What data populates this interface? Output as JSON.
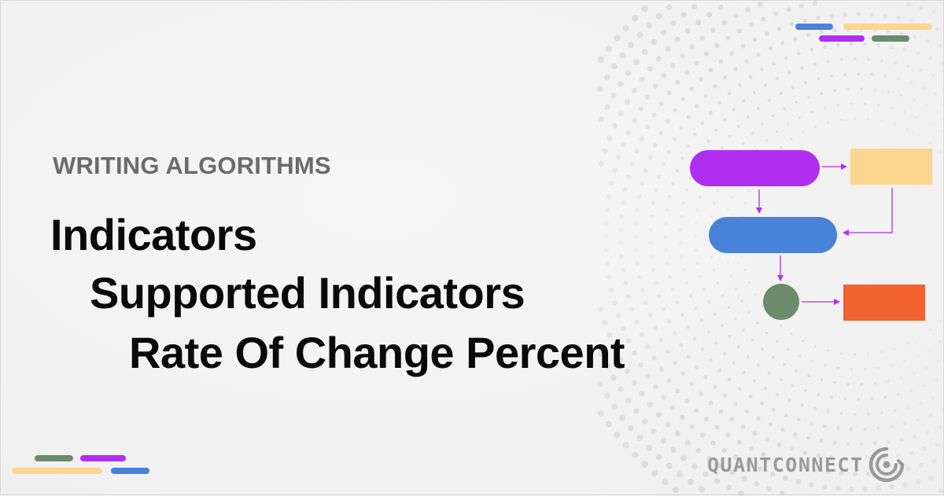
{
  "eyebrow": "WRITING ALGORITHMS",
  "breadcrumb": {
    "level1": "Indicators",
    "level2": "Supported Indicators",
    "level3": "Rate Of Change Percent"
  },
  "brand": {
    "name": "QUANTCONNECT",
    "logo_icon": "quantconnect-logo-icon"
  },
  "colors": {
    "purple": "#b02ef0",
    "yellow": "#fcd58e",
    "blue": "#4882d9",
    "green": "#6b8b6b",
    "orange": "#f26130",
    "arrow": "#b02ef0"
  }
}
